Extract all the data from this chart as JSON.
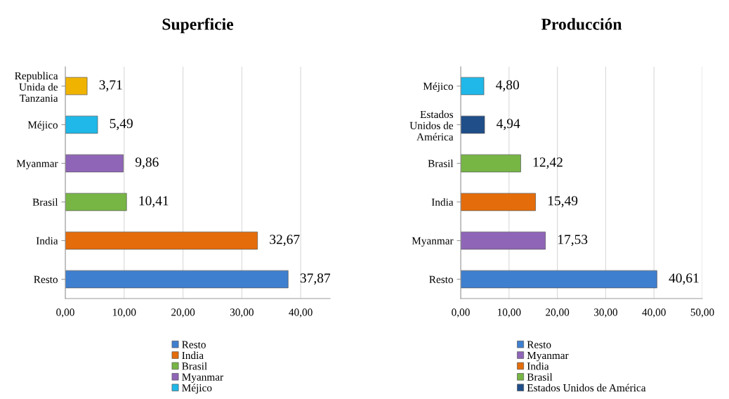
{
  "chart_data": [
    {
      "type": "bar",
      "orientation": "horizontal",
      "title": "Superficie",
      "categories": [
        "Republica\nUnida de\nTanzania",
        "Méjico",
        "Myanmar",
        "Brasil",
        "India",
        "Resto"
      ],
      "xlim": [
        0,
        45
      ],
      "xticks": [
        {
          "value": 0,
          "label": "0,00"
        },
        {
          "value": 10,
          "label": "10,00"
        },
        {
          "value": 20,
          "label": "20,00"
        },
        {
          "value": 30,
          "label": "30,00"
        },
        {
          "value": 40,
          "label": "40,00"
        }
      ],
      "grid": "x",
      "legend": "bottom",
      "series": [
        {
          "name": "Resto",
          "color": "#3f7fcf",
          "values": [
            null,
            null,
            null,
            null,
            null,
            37.87
          ],
          "value_labels": [
            null,
            null,
            null,
            null,
            null,
            "37,87"
          ]
        },
        {
          "name": "India",
          "color": "#e46c0a",
          "values": [
            null,
            null,
            null,
            null,
            32.67,
            null
          ],
          "value_labels": [
            null,
            null,
            null,
            null,
            "32,67",
            null
          ]
        },
        {
          "name": "Brasil",
          "color": "#77b545",
          "values": [
            null,
            null,
            null,
            10.41,
            null,
            null
          ],
          "value_labels": [
            null,
            null,
            null,
            "10,41",
            null,
            null
          ]
        },
        {
          "name": "Myanmar",
          "color": "#8f65b8",
          "values": [
            null,
            null,
            9.86,
            null,
            null,
            null
          ],
          "value_labels": [
            null,
            null,
            "9,86",
            null,
            null,
            null
          ]
        },
        {
          "name": "Méjico",
          "color": "#1fb8e8",
          "values": [
            null,
            5.49,
            null,
            null,
            null,
            null
          ],
          "value_labels": [
            null,
            "5,49",
            null,
            null,
            null,
            null
          ]
        },
        {
          "color": "#f0b400",
          "values": [
            3.71,
            null,
            null,
            null,
            null,
            null
          ],
          "value_labels": [
            "3,71",
            null,
            null,
            null,
            null,
            null
          ]
        }
      ]
    },
    {
      "type": "bar",
      "orientation": "horizontal",
      "title": "Producción",
      "categories": [
        "Méjico",
        "Estados\nUnidos de\nAmérica",
        "Brasil",
        "India",
        "Myanmar",
        "Resto"
      ],
      "xlim": [
        0,
        50
      ],
      "xticks": [
        {
          "value": 0,
          "label": "0,00"
        },
        {
          "value": 10,
          "label": "10,00"
        },
        {
          "value": 20,
          "label": "20,00"
        },
        {
          "value": 30,
          "label": "30,00"
        },
        {
          "value": 40,
          "label": "40,00"
        },
        {
          "value": 50,
          "label": "50,00"
        }
      ],
      "grid": "x",
      "legend": "bottom",
      "series": [
        {
          "name": "Resto",
          "color": "#3f7fcf",
          "values": [
            null,
            null,
            null,
            null,
            null,
            40.61
          ],
          "value_labels": [
            null,
            null,
            null,
            null,
            null,
            "40,61"
          ]
        },
        {
          "name": "Myanmar",
          "color": "#8f65b8",
          "values": [
            null,
            null,
            null,
            null,
            17.53,
            null
          ],
          "value_labels": [
            null,
            null,
            null,
            null,
            "17,53",
            null
          ]
        },
        {
          "name": "India",
          "color": "#e46c0a",
          "values": [
            null,
            null,
            null,
            15.49,
            null,
            null
          ],
          "value_labels": [
            null,
            null,
            null,
            "15,49",
            null,
            null
          ]
        },
        {
          "name": "Brasil",
          "color": "#77b545",
          "values": [
            null,
            null,
            12.42,
            null,
            null,
            null
          ],
          "value_labels": [
            null,
            null,
            "12,42",
            null,
            null,
            null
          ]
        },
        {
          "name": "Estados Unidos de América",
          "color": "#1f4e89",
          "values": [
            null,
            4.94,
            null,
            null,
            null,
            null
          ],
          "value_labels": [
            null,
            "4,94",
            null,
            null,
            null,
            null
          ]
        },
        {
          "color": "#1fb8e8",
          "values": [
            4.8,
            null,
            null,
            null,
            null,
            null
          ],
          "value_labels": [
            "4,80",
            null,
            null,
            null,
            null,
            null
          ]
        }
      ]
    }
  ]
}
